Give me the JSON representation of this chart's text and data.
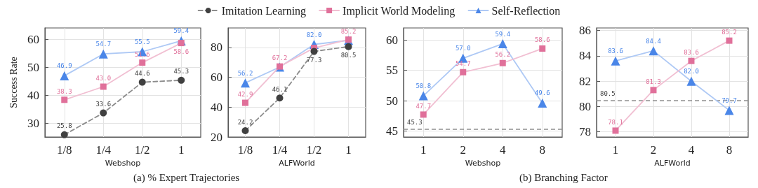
{
  "chart_data": [
    {
      "type": "line",
      "xlabel": "Webshop",
      "ylabel": "Success Rate",
      "categories": [
        "1/8",
        "1/4",
        "1/2",
        "1"
      ],
      "ylim": [
        25,
        64
      ],
      "yticks": [
        30,
        40,
        50,
        60
      ],
      "grid": true,
      "legend": "top",
      "annotations": [
        "(a) % Expert Trajectories"
      ],
      "series": [
        {
          "name": "Imitation Learning",
          "color": "#404040",
          "values": [
            25.8,
            33.6,
            44.6,
            45.3
          ],
          "marker": "circle",
          "line_style": "dashed",
          "value_labels": [
            "25.8",
            "33.6",
            "44.6",
            "45.3"
          ]
        },
        {
          "name": "Implicit World Modeling",
          "color": "#e0709a",
          "values": [
            38.3,
            43.0,
            51.6,
            58.6
          ],
          "marker": "square",
          "line_style": "solid",
          "value_labels": [
            "38.3",
            "43.0",
            "51.6",
            "58.6"
          ]
        },
        {
          "name": "Self-Reflection",
          "color": "#4a86e8",
          "values": [
            46.9,
            54.7,
            55.5,
            59.4
          ],
          "marker": "triangle",
          "line_style": "solid",
          "value_labels": [
            "46.9",
            "54.7",
            "55.5",
            "59.4"
          ]
        }
      ]
    },
    {
      "type": "line",
      "xlabel": "ALFWorld",
      "categories": [
        "1/8",
        "1/4",
        "1/2",
        "1"
      ],
      "ylim": [
        20,
        93
      ],
      "yticks": [
        20,
        40,
        60,
        80
      ],
      "grid": true,
      "series": [
        {
          "color": "#404040",
          "values": [
            24.2,
            46.1,
            77.3,
            80.5
          ],
          "marker": "circle",
          "line_style": "dashed",
          "value_labels": [
            "24.2",
            "46.1",
            "77.3",
            "80.5"
          ]
        },
        {
          "color": "#e0709a",
          "values": [
            42.9,
            67.2,
            79.6,
            85.2
          ],
          "marker": "square",
          "line_style": "solid",
          "value_labels": [
            "42.9",
            "67.2",
            null,
            "85.2"
          ]
        },
        {
          "color": "#4a86e8",
          "values": [
            56.2,
            66.8,
            82.0,
            84.7
          ],
          "marker": "triangle",
          "line_style": "solid",
          "value_labels": [
            "56.2",
            null,
            "82.0",
            null
          ]
        }
      ]
    },
    {
      "type": "line",
      "xlabel": "Webshop",
      "categories": [
        "1",
        "2",
        "4",
        "8"
      ],
      "ylim": [
        44,
        62
      ],
      "yticks": [
        45,
        50,
        55,
        60
      ],
      "grid": true,
      "annotations": [
        "(b) Branching Factor"
      ],
      "ref_lines": [
        {
          "axis": "y",
          "value": 45.3,
          "label": "45.3",
          "color": "#909090",
          "line_style": "dashed"
        }
      ],
      "series": [
        {
          "color": "#e0709a",
          "values": [
            47.7,
            54.7,
            56.2,
            58.6
          ],
          "marker": "square",
          "line_style": "solid",
          "value_labels": [
            "47.7",
            "54.7",
            "56.2",
            "58.6"
          ]
        },
        {
          "color": "#4a86e8",
          "values": [
            50.8,
            57.0,
            59.4,
            49.6
          ],
          "marker": "triangle",
          "line_style": "solid",
          "value_labels": [
            "50.8",
            "57.0",
            "59.4",
            "49.6"
          ]
        }
      ]
    },
    {
      "type": "line",
      "xlabel": "ALFWorld",
      "categories": [
        "1",
        "2",
        "4",
        "8"
      ],
      "ylim": [
        77.6,
        86.2
      ],
      "yticks": [
        78,
        80,
        82,
        84,
        86
      ],
      "grid": true,
      "ref_lines": [
        {
          "axis": "y",
          "value": 80.5,
          "label": "80.5",
          "color": "#909090",
          "line_style": "dashed"
        }
      ],
      "series": [
        {
          "color": "#e0709a",
          "values": [
            78.1,
            81.3,
            83.6,
            85.2
          ],
          "marker": "square",
          "line_style": "solid",
          "value_labels": [
            "78.1",
            "81.3",
            "83.6",
            "85.2"
          ]
        },
        {
          "color": "#4a86e8",
          "values": [
            83.6,
            84.4,
            82.0,
            79.7
          ],
          "marker": "triangle",
          "line_style": "solid",
          "value_labels": [
            "83.6",
            "84.4",
            "82.0",
            "79.7"
          ]
        }
      ]
    }
  ]
}
